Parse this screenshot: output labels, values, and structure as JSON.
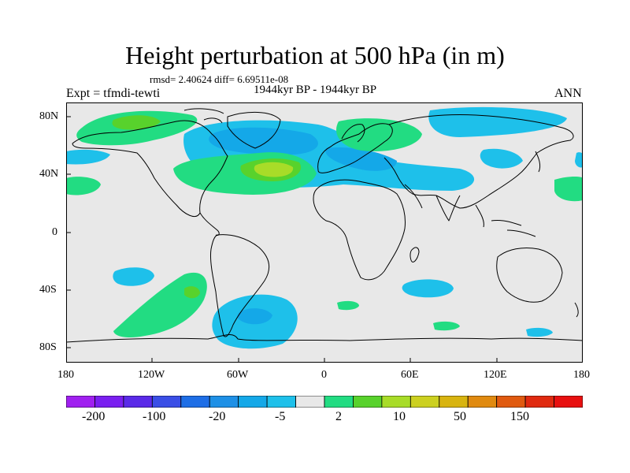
{
  "title": "Height perturbation at 500 hPa (in m)",
  "stats_line": "rmsd= 2.40624 diff= 6.69511e-08",
  "period": "1944kyr BP - 1944kyr BP",
  "experiment": "Expt = tfmdi-tewti",
  "season": "ANN",
  "lat_labels": [
    "80N",
    "40N",
    "0",
    "40S",
    "80S"
  ],
  "lon_labels": [
    "180",
    "120W",
    "60W",
    "0",
    "60E",
    "120E",
    "180"
  ],
  "colorbar": {
    "colors": [
      "#a020f0",
      "#7a1ff0",
      "#5a2ae8",
      "#3a4ee6",
      "#1e6ee6",
      "#1e90e6",
      "#14a8e8",
      "#1ec0ea",
      "#e8e8e8",
      "#22dc82",
      "#58d22c",
      "#a8dc28",
      "#ccd020",
      "#d8b410",
      "#e08a10",
      "#e05a10",
      "#e02a10",
      "#e81010"
    ],
    "tick_labels": [
      "-200",
      "-100",
      "-20",
      "-5",
      "2",
      "10",
      "50",
      "150"
    ]
  },
  "colors": {
    "background": "#e8e8e8",
    "light_blue": "#1ec0ea",
    "mid_blue": "#14a8e8",
    "light_green": "#22dc82",
    "green": "#58d22c",
    "yellow_green": "#a8dc28"
  }
}
